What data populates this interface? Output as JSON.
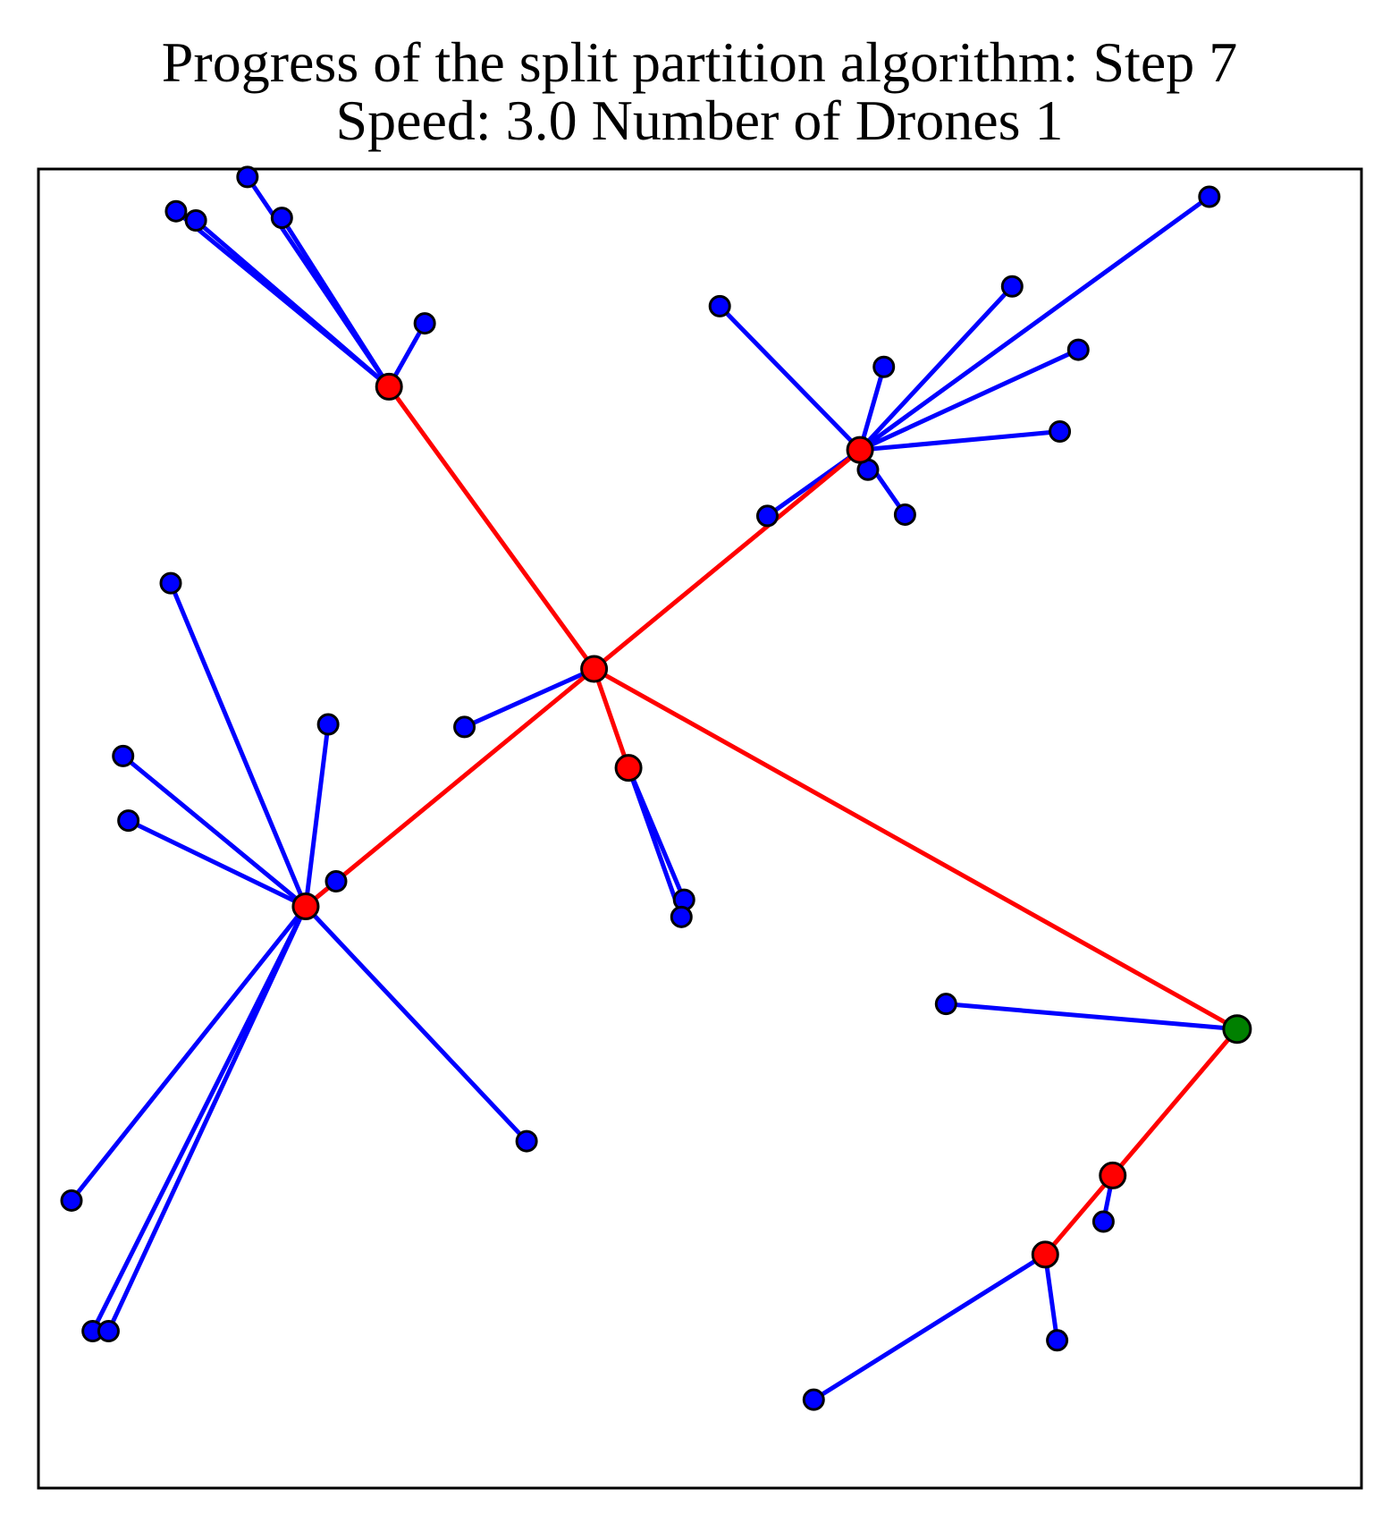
{
  "chart_data": {
    "type": "scatter",
    "title": "Progress of the split partition algorithm: Step 7",
    "subtitle": "Speed: 3.0 Number of Drones 1",
    "xlabel": "",
    "ylabel": "",
    "xlim": [
      0,
      100
    ],
    "ylim": [
      0,
      100
    ],
    "grid": false,
    "axis_ticks": false,
    "colors": {
      "route_edge": "#ff0000",
      "assignment_edge": "#0000ff",
      "red_node": "#ff0000",
      "blue_node": "#0000ff",
      "depot_node": "#008000",
      "outline": "#000000"
    },
    "depot": {
      "x": 90.6,
      "y": 34.8
    },
    "red_nodes": [
      {
        "x": 26.5,
        "y": 83.5
      },
      {
        "x": 62.1,
        "y": 78.7
      },
      {
        "x": 42.0,
        "y": 62.1
      },
      {
        "x": 44.6,
        "y": 54.6
      },
      {
        "x": 20.2,
        "y": 44.1
      },
      {
        "x": 81.2,
        "y": 23.7
      },
      {
        "x": 76.1,
        "y": 17.7
      }
    ],
    "blue_nodes": [
      {
        "x": 15.8,
        "y": 99.4
      },
      {
        "x": 18.4,
        "y": 96.3
      },
      {
        "x": 10.4,
        "y": 96.8
      },
      {
        "x": 11.9,
        "y": 96.1
      },
      {
        "x": 29.2,
        "y": 88.3
      },
      {
        "x": 88.5,
        "y": 97.9
      },
      {
        "x": 73.6,
        "y": 91.1
      },
      {
        "x": 51.5,
        "y": 89.6
      },
      {
        "x": 78.6,
        "y": 86.3
      },
      {
        "x": 63.9,
        "y": 85.0
      },
      {
        "x": 77.2,
        "y": 80.1
      },
      {
        "x": 62.7,
        "y": 77.2
      },
      {
        "x": 65.5,
        "y": 73.8
      },
      {
        "x": 55.1,
        "y": 73.7
      },
      {
        "x": 10.0,
        "y": 68.6
      },
      {
        "x": 32.2,
        "y": 57.7
      },
      {
        "x": 21.9,
        "y": 57.9
      },
      {
        "x": 6.4,
        "y": 55.5
      },
      {
        "x": 6.8,
        "y": 50.6
      },
      {
        "x": 22.5,
        "y": 46.0
      },
      {
        "x": 48.8,
        "y": 44.6
      },
      {
        "x": 48.6,
        "y": 43.3
      },
      {
        "x": 68.6,
        "y": 36.7
      },
      {
        "x": 36.9,
        "y": 26.3
      },
      {
        "x": 2.5,
        "y": 21.8
      },
      {
        "x": 80.5,
        "y": 20.2
      },
      {
        "x": 4.1,
        "y": 11.9
      },
      {
        "x": 5.3,
        "y": 11.9
      },
      {
        "x": 77.0,
        "y": 11.2
      },
      {
        "x": 58.6,
        "y": 6.7
      }
    ],
    "route_edges": [
      [
        {
          "x": 42.0,
          "y": 62.1
        },
        {
          "x": 26.5,
          "y": 83.5
        }
      ],
      [
        {
          "x": 42.0,
          "y": 62.1
        },
        {
          "x": 62.1,
          "y": 78.7
        }
      ],
      [
        {
          "x": 42.0,
          "y": 62.1
        },
        {
          "x": 44.6,
          "y": 54.6
        }
      ],
      [
        {
          "x": 42.0,
          "y": 62.1
        },
        {
          "x": 20.2,
          "y": 44.1
        }
      ],
      [
        {
          "x": 42.0,
          "y": 62.1
        },
        {
          "x": 90.6,
          "y": 34.8
        }
      ],
      [
        {
          "x": 90.6,
          "y": 34.8
        },
        {
          "x": 81.2,
          "y": 23.7
        }
      ],
      [
        {
          "x": 81.2,
          "y": 23.7
        },
        {
          "x": 76.1,
          "y": 17.7
        }
      ]
    ],
    "assignment_edges": [
      [
        {
          "x": 26.5,
          "y": 83.5
        },
        {
          "x": 15.8,
          "y": 99.4
        }
      ],
      [
        {
          "x": 26.5,
          "y": 83.5
        },
        {
          "x": 18.4,
          "y": 96.3
        }
      ],
      [
        {
          "x": 26.5,
          "y": 83.5
        },
        {
          "x": 10.4,
          "y": 96.8
        }
      ],
      [
        {
          "x": 26.5,
          "y": 83.5
        },
        {
          "x": 11.9,
          "y": 96.1
        }
      ],
      [
        {
          "x": 26.5,
          "y": 83.5
        },
        {
          "x": 29.2,
          "y": 88.3
        }
      ],
      [
        {
          "x": 62.1,
          "y": 78.7
        },
        {
          "x": 88.5,
          "y": 97.9
        }
      ],
      [
        {
          "x": 62.1,
          "y": 78.7
        },
        {
          "x": 73.6,
          "y": 91.1
        }
      ],
      [
        {
          "x": 62.1,
          "y": 78.7
        },
        {
          "x": 51.5,
          "y": 89.6
        }
      ],
      [
        {
          "x": 62.1,
          "y": 78.7
        },
        {
          "x": 78.6,
          "y": 86.3
        }
      ],
      [
        {
          "x": 62.1,
          "y": 78.7
        },
        {
          "x": 63.9,
          "y": 85.0
        }
      ],
      [
        {
          "x": 62.1,
          "y": 78.7
        },
        {
          "x": 77.2,
          "y": 80.1
        }
      ],
      [
        {
          "x": 62.1,
          "y": 78.7
        },
        {
          "x": 62.7,
          "y": 77.2
        }
      ],
      [
        {
          "x": 62.1,
          "y": 78.7
        },
        {
          "x": 65.5,
          "y": 73.8
        }
      ],
      [
        {
          "x": 62.1,
          "y": 78.7
        },
        {
          "x": 55.1,
          "y": 73.7
        }
      ],
      [
        {
          "x": 42.0,
          "y": 62.1
        },
        {
          "x": 32.2,
          "y": 57.7
        }
      ],
      [
        {
          "x": 44.6,
          "y": 54.6
        },
        {
          "x": 48.8,
          "y": 44.6
        }
      ],
      [
        {
          "x": 44.6,
          "y": 54.6
        },
        {
          "x": 48.6,
          "y": 43.3
        }
      ],
      [
        {
          "x": 20.2,
          "y": 44.1
        },
        {
          "x": 10.0,
          "y": 68.6
        }
      ],
      [
        {
          "x": 20.2,
          "y": 44.1
        },
        {
          "x": 21.9,
          "y": 57.9
        }
      ],
      [
        {
          "x": 20.2,
          "y": 44.1
        },
        {
          "x": 6.4,
          "y": 55.5
        }
      ],
      [
        {
          "x": 20.2,
          "y": 44.1
        },
        {
          "x": 6.8,
          "y": 50.6
        }
      ],
      [
        {
          "x": 20.2,
          "y": 44.1
        },
        {
          "x": 22.5,
          "y": 46.0
        }
      ],
      [
        {
          "x": 20.2,
          "y": 44.1
        },
        {
          "x": 36.9,
          "y": 26.3
        }
      ],
      [
        {
          "x": 20.2,
          "y": 44.1
        },
        {
          "x": 2.5,
          "y": 21.8
        }
      ],
      [
        {
          "x": 20.2,
          "y": 44.1
        },
        {
          "x": 4.1,
          "y": 11.9
        }
      ],
      [
        {
          "x": 20.2,
          "y": 44.1
        },
        {
          "x": 5.3,
          "y": 11.9
        }
      ],
      [
        {
          "x": 90.6,
          "y": 34.8
        },
        {
          "x": 68.6,
          "y": 36.7
        }
      ],
      [
        {
          "x": 81.2,
          "y": 23.7
        },
        {
          "x": 80.5,
          "y": 20.2
        }
      ],
      [
        {
          "x": 76.1,
          "y": 17.7
        },
        {
          "x": 77.0,
          "y": 11.2
        }
      ],
      [
        {
          "x": 76.1,
          "y": 17.7
        },
        {
          "x": 58.6,
          "y": 6.7
        }
      ]
    ]
  }
}
